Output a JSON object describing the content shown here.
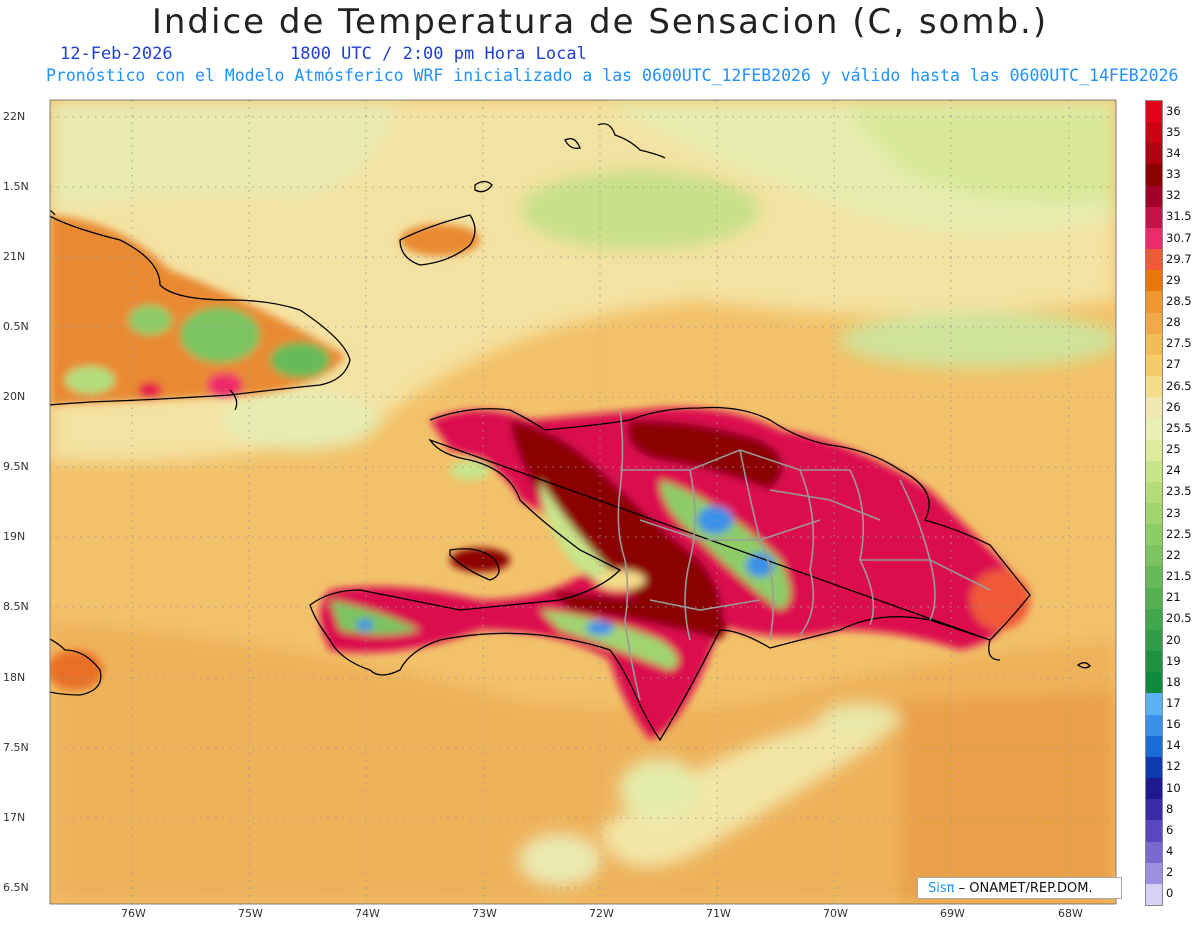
{
  "title": "Indice de Temperatura de Sensacion (C, somb.)",
  "date": "12-Feb-2026",
  "time": "1800 UTC / 2:00 pm Hora Local",
  "model_line": "Pronóstico con el Modelo Atmósferico WRF inicializado a las 0600UTC_12FEB2026 y válido hasta las  0600UTC_14FEB2026",
  "credit": {
    "brand": "Sisπ",
    "text": " – ONAMET/REP.DOM."
  },
  "lat_labels": [
    "22N",
    "1.5N",
    "21N",
    "0.5N",
    "20N",
    "9.5N",
    "19N",
    "8.5N",
    "18N",
    "7.5N",
    "17N",
    "6.5N"
  ],
  "lon_labels": [
    "76W",
    "75W",
    "74W",
    "73W",
    "72W",
    "71W",
    "70W",
    "69W",
    "68W"
  ],
  "colorbar": {
    "labels": [
      "36",
      "35",
      "34",
      "33",
      "32",
      "31.5",
      "30.7",
      "29.7",
      "29",
      "28.5",
      "28",
      "27.5",
      "27",
      "26.5",
      "26",
      "25.5",
      "25",
      "24",
      "23.5",
      "23",
      "22.5",
      "22",
      "21.5",
      "21",
      "20.5",
      "20",
      "19",
      "18",
      "17",
      "16",
      "14",
      "12",
      "10",
      "8",
      "6",
      "4",
      "2",
      "0"
    ],
    "colors": [
      "#e6001a",
      "#cc0010",
      "#b00010",
      "#8b0000",
      "#a0002a",
      "#c8104a",
      "#ee2a6a",
      "#f05838",
      "#e8780a",
      "#ee9630",
      "#f0a848",
      "#f2bc58",
      "#f4cc6a",
      "#f4dc8a",
      "#f0e8b0",
      "#eaf0b4",
      "#dcec9c",
      "#c8e48a",
      "#b4dc7c",
      "#a0d470",
      "#8ecc68",
      "#7cc460",
      "#68ba58",
      "#54b050",
      "#42a64c",
      "#309c48",
      "#1e9040",
      "#0e8a3c",
      "#5ab0f0",
      "#3a90e8",
      "#1a6ad8",
      "#103ab0",
      "#201a90",
      "#3a2aa8",
      "#5a48c0",
      "#7a6ad0",
      "#9c90e0",
      "#d6d2f4"
    ]
  }
}
